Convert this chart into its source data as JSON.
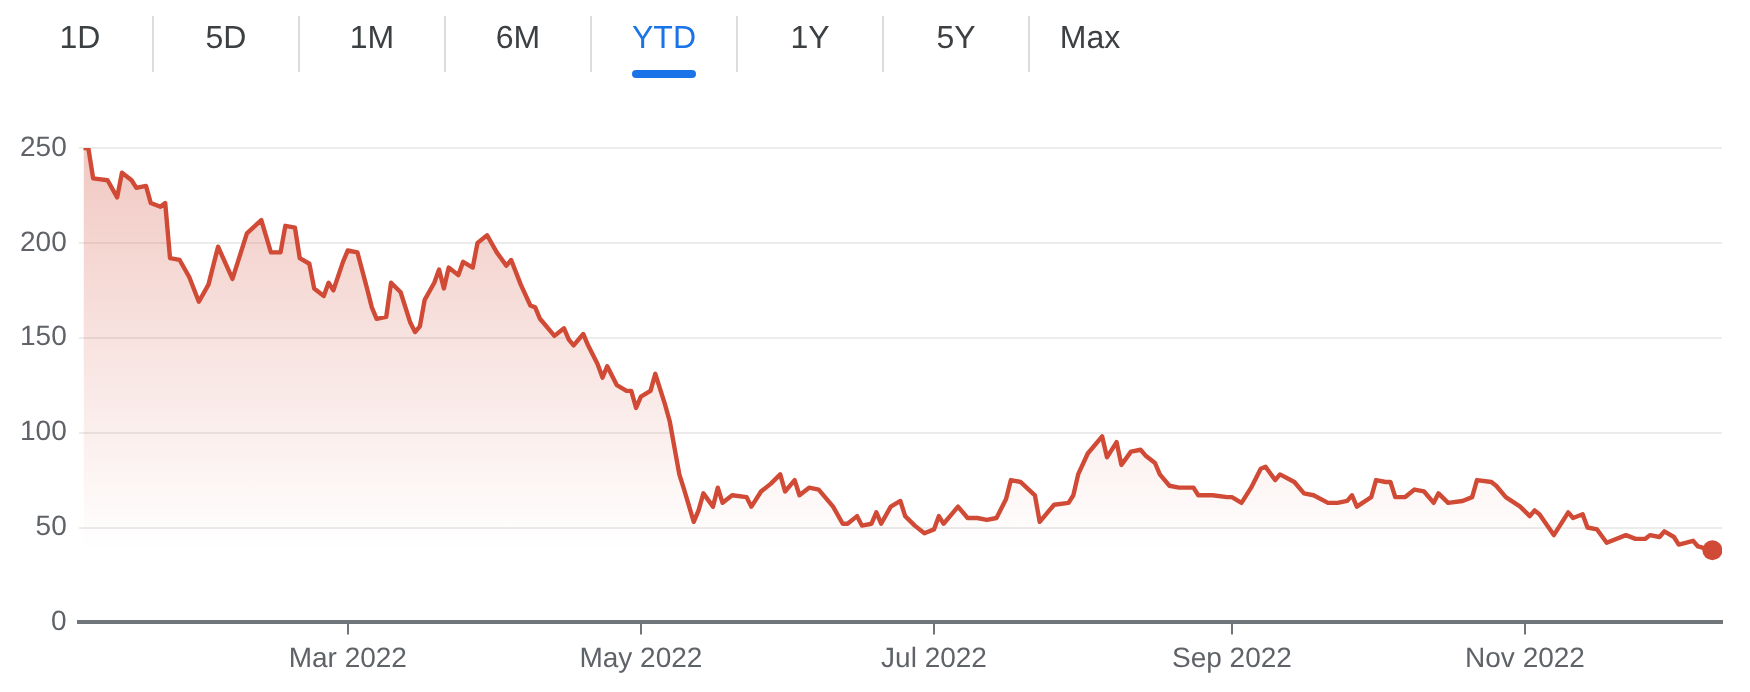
{
  "chart_data": {
    "type": "area",
    "annotations": [
      "1D",
      "5D",
      "1M",
      "6M",
      "YTD",
      "1Y",
      "5Y",
      "Max"
    ],
    "x": [
      "2022-01-05",
      "2022-01-06",
      "2022-01-07",
      "2022-01-10",
      "2022-01-12",
      "2022-01-13",
      "2022-01-15",
      "2022-01-16",
      "2022-01-18",
      "2022-01-19",
      "2022-01-21",
      "2022-01-22",
      "2022-01-23",
      "2022-01-25",
      "2022-01-27",
      "2022-01-29",
      "2022-01-31",
      "2022-02-02",
      "2022-02-05",
      "2022-02-08",
      "2022-02-11",
      "2022-02-13",
      "2022-02-15",
      "2022-02-16",
      "2022-02-18",
      "2022-02-19",
      "2022-02-21",
      "2022-02-22",
      "2022-02-24",
      "2022-02-25",
      "2022-02-26",
      "2022-02-28",
      "2022-03-01",
      "2022-03-03",
      "2022-03-05",
      "2022-03-06",
      "2022-03-07",
      "2022-03-09",
      "2022-03-10",
      "2022-03-12",
      "2022-03-14",
      "2022-03-15",
      "2022-03-16",
      "2022-03-17",
      "2022-03-19",
      "2022-03-20",
      "2022-03-21",
      "2022-03-22",
      "2022-03-24",
      "2022-03-25",
      "2022-03-27",
      "2022-03-28",
      "2022-03-30",
      "2022-04-01",
      "2022-04-03",
      "2022-04-04",
      "2022-04-06",
      "2022-04-08",
      "2022-04-09",
      "2022-04-10",
      "2022-04-12",
      "2022-04-13",
      "2022-04-15",
      "2022-04-16",
      "2022-04-17",
      "2022-04-19",
      "2022-04-20",
      "2022-04-22",
      "2022-04-23",
      "2022-04-24",
      "2022-04-26",
      "2022-04-28",
      "2022-04-29",
      "2022-04-30",
      "2022-05-01",
      "2022-05-03",
      "2022-05-04",
      "2022-05-06",
      "2022-05-07",
      "2022-05-08",
      "2022-05-09",
      "2022-05-10",
      "2022-05-12",
      "2022-05-13",
      "2022-05-14",
      "2022-05-16",
      "2022-05-17",
      "2022-05-18",
      "2022-05-20",
      "2022-05-23",
      "2022-05-24",
      "2022-05-26",
      "2022-05-28",
      "2022-05-30",
      "2022-05-31",
      "2022-06-02",
      "2022-06-03",
      "2022-06-05",
      "2022-06-07",
      "2022-06-10",
      "2022-06-12",
      "2022-06-13",
      "2022-06-15",
      "2022-06-16",
      "2022-06-18",
      "2022-06-19",
      "2022-06-20",
      "2022-06-22",
      "2022-06-24",
      "2022-06-25",
      "2022-06-27",
      "2022-06-29",
      "2022-07-01",
      "2022-07-02",
      "2022-07-03",
      "2022-07-05",
      "2022-07-06",
      "2022-07-08",
      "2022-07-10",
      "2022-07-12",
      "2022-07-14",
      "2022-07-16",
      "2022-07-17",
      "2022-07-19",
      "2022-07-22",
      "2022-07-23",
      "2022-07-25",
      "2022-07-26",
      "2022-07-29",
      "2022-07-30",
      "2022-07-31",
      "2022-08-02",
      "2022-08-05",
      "2022-08-06",
      "2022-08-08",
      "2022-08-09",
      "2022-08-11",
      "2022-08-13",
      "2022-08-14",
      "2022-08-16",
      "2022-08-17",
      "2022-08-19",
      "2022-08-21",
      "2022-08-24",
      "2022-08-25",
      "2022-08-28",
      "2022-08-31",
      "2022-09-01",
      "2022-09-03",
      "2022-09-05",
      "2022-09-07",
      "2022-09-08",
      "2022-09-10",
      "2022-09-11",
      "2022-09-14",
      "2022-09-16",
      "2022-09-18",
      "2022-09-21",
      "2022-09-23",
      "2022-09-25",
      "2022-09-26",
      "2022-09-27",
      "2022-09-30",
      "2022-10-01",
      "2022-10-03",
      "2022-10-04",
      "2022-10-05",
      "2022-10-07",
      "2022-10-09",
      "2022-10-11",
      "2022-10-13",
      "2022-10-14",
      "2022-10-16",
      "2022-10-19",
      "2022-10-21",
      "2022-10-22",
      "2022-10-25",
      "2022-10-26",
      "2022-10-28",
      "2022-10-31",
      "2022-11-02",
      "2022-11-03",
      "2022-11-04",
      "2022-11-07",
      "2022-11-10",
      "2022-11-11",
      "2022-11-13",
      "2022-11-14",
      "2022-11-16",
      "2022-11-18",
      "2022-11-22",
      "2022-11-24",
      "2022-11-26",
      "2022-11-27",
      "2022-11-29",
      "2022-11-30",
      "2022-12-02",
      "2022-12-03",
      "2022-12-06",
      "2022-12-07",
      "2022-12-10"
    ],
    "series": [
      {
        "color": "#d04a36",
        "values": [
          250,
          250,
          234,
          233,
          224,
          237,
          233,
          229,
          230,
          221,
          219,
          221,
          192,
          191,
          182,
          169,
          178,
          198,
          181,
          205,
          212,
          195,
          195,
          209,
          208,
          192,
          189,
          176,
          172,
          179,
          175,
          190,
          196,
          195,
          176,
          166,
          160,
          161,
          179,
          174,
          158,
          153,
          156,
          170,
          179,
          186,
          176,
          187,
          183,
          190,
          187,
          200,
          204,
          195,
          188,
          191,
          178,
          167,
          166,
          160,
          154,
          151,
          155,
          149,
          146,
          152,
          146,
          136,
          129,
          135,
          125,
          122,
          122,
          113,
          119,
          122,
          131,
          115,
          106,
          92,
          78,
          70,
          53,
          59,
          68,
          61,
          71,
          63,
          67,
          66,
          61,
          69,
          73,
          78,
          69,
          75,
          67,
          71,
          70,
          61,
          52,
          52,
          56,
          51,
          52,
          58,
          52,
          61,
          64,
          56,
          51,
          47,
          49,
          56,
          52,
          58,
          61,
          55,
          55,
          54,
          55,
          65,
          75,
          74,
          67,
          53,
          59,
          62,
          63,
          67,
          78,
          89,
          98,
          87,
          95,
          83,
          90,
          91,
          88,
          84,
          78,
          72,
          71,
          71,
          67,
          67,
          66,
          66,
          63,
          71,
          81,
          82,
          75,
          78,
          74,
          68,
          67,
          63,
          63,
          64,
          67,
          61,
          66,
          75,
          74,
          74,
          66,
          66,
          70,
          69,
          63,
          68,
          63,
          64,
          66,
          75,
          74,
          72,
          66,
          61,
          56,
          59,
          57,
          46,
          58,
          55,
          57,
          50,
          49,
          42,
          46,
          44,
          44,
          46,
          45,
          48,
          45,
          41,
          43,
          40,
          38
        ]
      }
    ],
    "xlim": [
      "2022-01-04",
      "2022-12-12"
    ],
    "xticks": [
      {
        "value": "2022-03-01",
        "label": "Mar 2022"
      },
      {
        "value": "2022-05-01",
        "label": "May 2022"
      },
      {
        "value": "2022-07-01",
        "label": "Jul 2022"
      },
      {
        "value": "2022-09-01",
        "label": "Sep 2022"
      },
      {
        "value": "2022-11-01",
        "label": "Nov 2022"
      }
    ],
    "ylim": [
      0,
      250
    ],
    "yticks": [
      0,
      50,
      100,
      150,
      200,
      250
    ],
    "grid": "y",
    "legend": false
  }
}
